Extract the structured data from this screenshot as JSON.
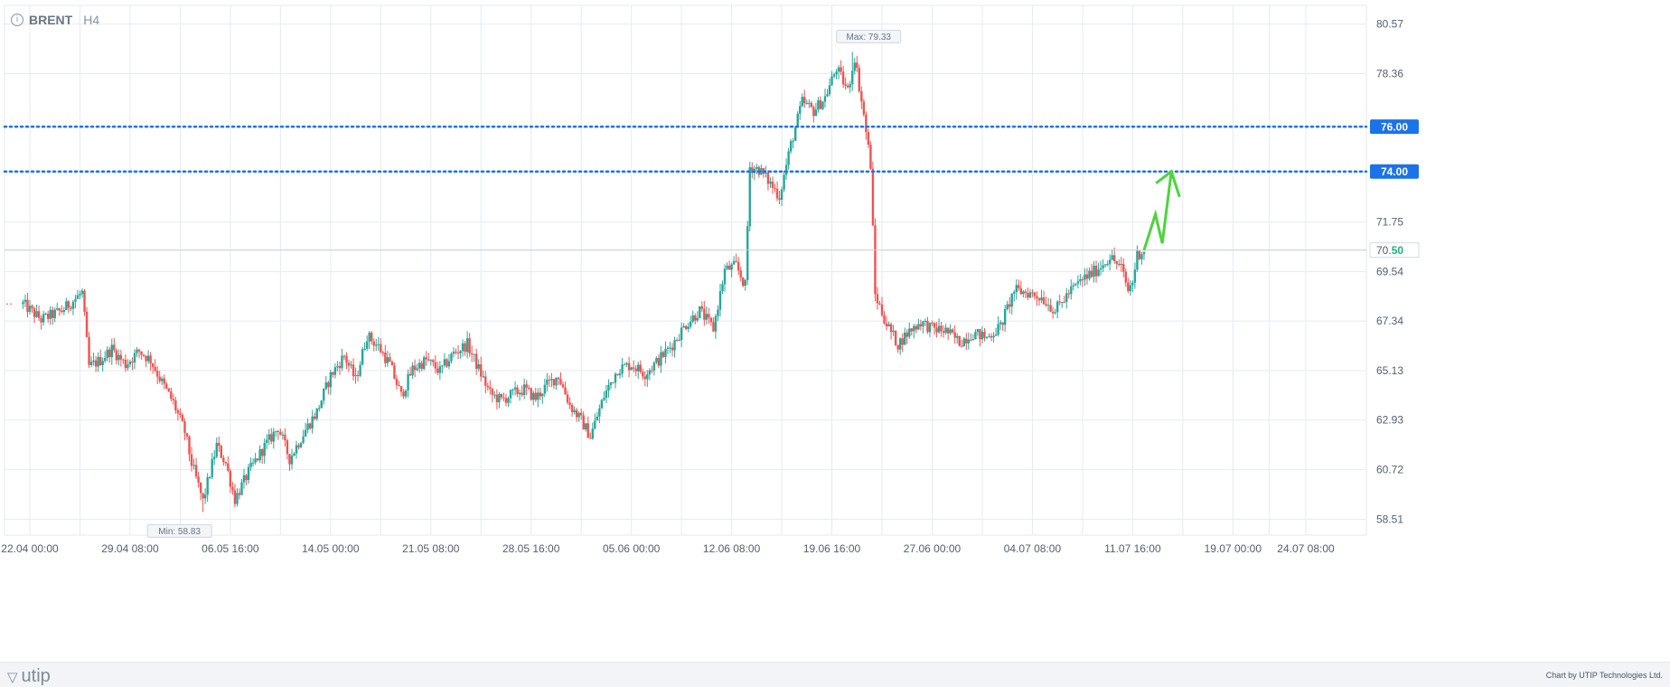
{
  "header": {
    "info_icon": "info-icon",
    "symbol": "BRENT",
    "timeframe": "H4"
  },
  "footer": {
    "logo": "utip",
    "logo_icon": "utip-triangle-icon",
    "credit": "Chart by UTIP Technologies Ltd."
  },
  "colors": {
    "up": "#26a69a",
    "down": "#ef5350",
    "level_line": "#1a73e8",
    "arrow": "#4cd43c",
    "grid": "#e6ebf2",
    "last_price": "#20b07a"
  },
  "chart_data": {
    "type": "candlestick",
    "symbol": "BRENT",
    "timeframe": "H4",
    "ylim": [
      57.8,
      81.4
    ],
    "y_ticks": [
      "80.57",
      "78.36",
      "76.00",
      "74.00",
      "71.75",
      "70.50",
      "69.54",
      "67.34",
      "65.13",
      "62.93",
      "60.72",
      "58.51"
    ],
    "x_ticks": [
      "22.04 00:00",
      "29.04 08:00",
      "06.05 16:00",
      "14.05 00:00",
      "21.05 08:00",
      "28.05 16:00",
      "05.06 00:00",
      "12.06 08:00",
      "19.06 16:00",
      "27.06 00:00",
      "04.07 08:00",
      "11.07 16:00",
      "19.07 00:00",
      "24.07 08:00"
    ],
    "x_tick_range": [
      "22.04 00:00",
      "24.07 08:00"
    ],
    "horizontal_levels": [
      {
        "label": "76.00",
        "value": 76.0
      },
      {
        "label": "74.00",
        "value": 74.0
      }
    ],
    "last_price": {
      "label_main": "70.",
      "label_frac": "50",
      "value": 70.5
    },
    "max_label": "Max: 79.33",
    "max": {
      "date": "21.06 04:00",
      "value": 79.33
    },
    "min_label": "Min: 58.83",
    "min": {
      "date": "04.05 16:00",
      "value": 58.83
    },
    "forecast_arrow": {
      "points": [
        [
          "12.07 12:00",
          70.5
        ],
        [
          "13.07 08:00",
          72.1
        ],
        [
          "13.07 20:00",
          70.8
        ],
        [
          "14.07 12:00",
          74.0
        ]
      ]
    },
    "close_path": [
      [
        "21.04 12:00",
        68.1
      ],
      [
        "22.04 20:00",
        67.4
      ],
      [
        "24.04 08:00",
        67.8
      ],
      [
        "25.04 20:00",
        68.6
      ],
      [
        "26.04 08:00",
        65.3
      ],
      [
        "27.04 04:00",
        65.6
      ],
      [
        "28.04 00:00",
        66.1
      ],
      [
        "29.04 00:00",
        65.4
      ],
      [
        "30.04 00:00",
        66.0
      ],
      [
        "30.04 20:00",
        65.6
      ],
      [
        "01.05 16:00",
        64.6
      ],
      [
        "02.05 12:00",
        63.7
      ],
      [
        "03.05 08:00",
        62.4
      ],
      [
        "03.05 20:00",
        61.0
      ],
      [
        "04.05 16:00",
        59.3
      ],
      [
        "05.05 16:00",
        61.8
      ],
      [
        "06.05 08:00",
        61.0
      ],
      [
        "07.05 00:00",
        59.4
      ],
      [
        "08.05 00:00",
        60.6
      ],
      [
        "09.05 00:00",
        61.6
      ],
      [
        "10.05 04:00",
        62.6
      ],
      [
        "11.05 00:00",
        61.2
      ],
      [
        "12.05 04:00",
        62.5
      ],
      [
        "13.05 00:00",
        63.3
      ],
      [
        "14.05 00:00",
        64.9
      ],
      [
        "15.05 00:00",
        65.8
      ],
      [
        "15.05 20:00",
        64.7
      ],
      [
        "16.05 16:00",
        66.7
      ],
      [
        "17.05 12:00",
        66.2
      ],
      [
        "18.05 08:00",
        65.4
      ],
      [
        "19.05 04:00",
        64.0
      ],
      [
        "20.05 00:00",
        65.2
      ],
      [
        "21.05 00:00",
        65.6
      ],
      [
        "22.05 00:00",
        65.1
      ],
      [
        "23.05 00:00",
        65.9
      ],
      [
        "24.05 00:00",
        66.3
      ],
      [
        "24.05 20:00",
        65.2
      ],
      [
        "25.05 16:00",
        64.1
      ],
      [
        "26.05 12:00",
        63.8
      ],
      [
        "27.05 08:00",
        64.1
      ],
      [
        "28.05 04:00",
        64.3
      ],
      [
        "29.05 00:00",
        63.9
      ],
      [
        "29.05 20:00",
        64.5
      ],
      [
        "30.05 16:00",
        64.9
      ],
      [
        "31.05 12:00",
        63.6
      ],
      [
        "01.06 08:00",
        62.9
      ],
      [
        "02.06 00:00",
        62.2
      ],
      [
        "03.06 00:00",
        64.0
      ],
      [
        "04.06 00:00",
        65.2
      ],
      [
        "05.06 00:00",
        65.4
      ],
      [
        "06.06 00:00",
        65.0
      ],
      [
        "07.06 00:00",
        65.6
      ],
      [
        "08.06 00:00",
        66.3
      ],
      [
        "09.06 00:00",
        67.2
      ],
      [
        "10.06 00:00",
        67.8
      ],
      [
        "11.06 00:00",
        67.0
      ],
      [
        "11.06 20:00",
        69.6
      ],
      [
        "12.06 16:00",
        69.8
      ],
      [
        "13.06 08:00",
        68.9
      ],
      [
        "13.06 16:00",
        74.2
      ],
      [
        "14.06 08:00",
        74.1
      ],
      [
        "15.06 00:00",
        73.6
      ],
      [
        "15.06 20:00",
        72.9
      ],
      [
        "16.06 16:00",
        75.2
      ],
      [
        "17.06 12:00",
        77.1
      ],
      [
        "18.06 08:00",
        76.7
      ],
      [
        "19.06 04:00",
        77.3
      ],
      [
        "20.06 00:00",
        78.6
      ],
      [
        "20.06 20:00",
        77.6
      ],
      [
        "21.06 08:00",
        79.1
      ],
      [
        "22.06 00:00",
        76.5
      ],
      [
        "22.06 12:00",
        74.3
      ],
      [
        "22.06 20:00",
        68.5
      ],
      [
        "23.06 16:00",
        67.2
      ],
      [
        "24.06 12:00",
        66.3
      ],
      [
        "25.06 08:00",
        66.9
      ],
      [
        "26.06 04:00",
        67.3
      ],
      [
        "27.06 00:00",
        67.0
      ],
      [
        "28.06 00:00",
        66.9
      ],
      [
        "29.06 00:00",
        66.4
      ],
      [
        "30.06 00:00",
        66.8
      ],
      [
        "01.07 00:00",
        66.6
      ],
      [
        "02.07 00:00",
        67.1
      ],
      [
        "03.07 00:00",
        68.7
      ],
      [
        "04.07 00:00",
        68.6
      ],
      [
        "05.07 00:00",
        68.4
      ],
      [
        "06.07 00:00",
        67.8
      ],
      [
        "07.07 00:00",
        68.6
      ],
      [
        "08.07 00:00",
        69.2
      ],
      [
        "09.07 00:00",
        69.6
      ],
      [
        "10.07 00:00",
        70.2
      ],
      [
        "10.07 20:00",
        69.7
      ],
      [
        "11.07 08:00",
        68.7
      ],
      [
        "11.07 16:00",
        69.1
      ],
      [
        "12.07 00:00",
        70.3
      ],
      [
        "12.07 12:00",
        70.5
      ]
    ]
  }
}
